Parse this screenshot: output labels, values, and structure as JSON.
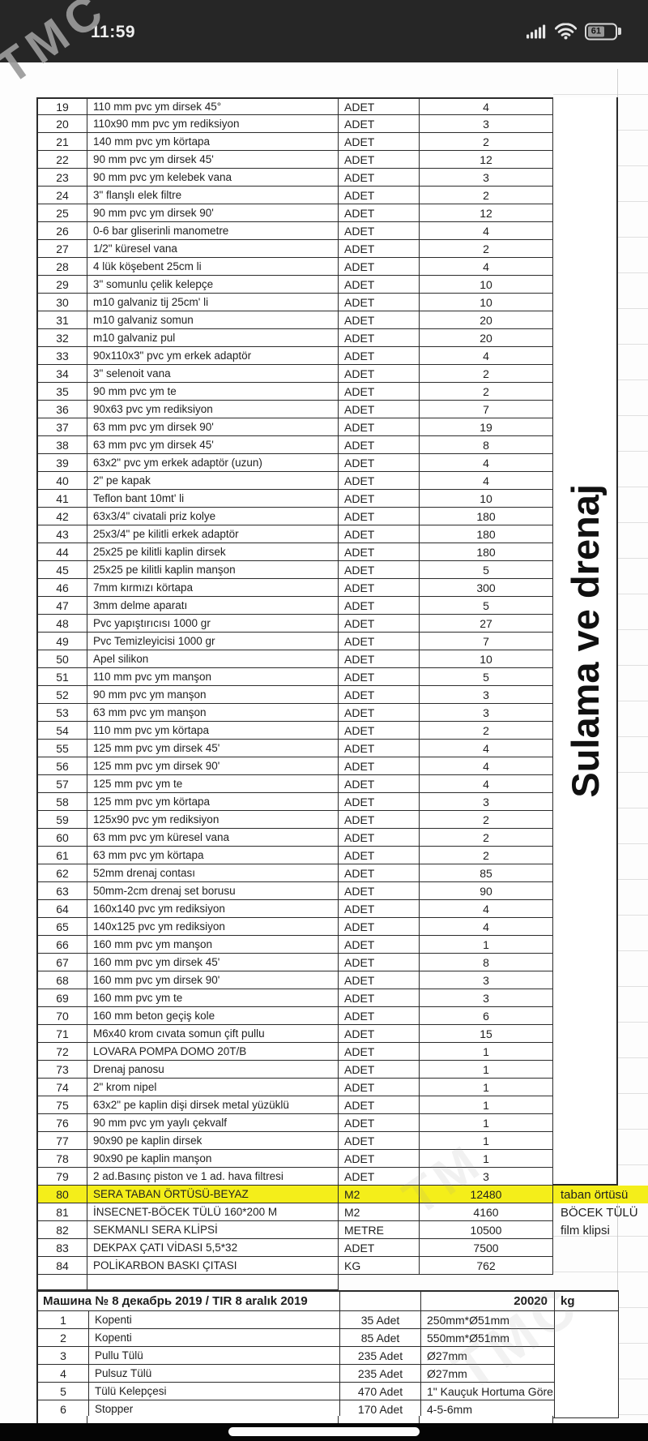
{
  "status_bar": {
    "time": "11:59",
    "battery_percent": "61",
    "icons": [
      "cellular-signal-icon",
      "wifi-icon",
      "battery-icon"
    ]
  },
  "watermarks": {
    "top": "TMC",
    "mid1": "TM",
    "mid2": "TMC"
  },
  "side_label": "Sulama ve drenaj",
  "colors": {
    "highlight_yellow": "#f4ee1a",
    "status_bar_bg": "#262626",
    "table_border": "#2b2b2b",
    "gridline_gray": "#c9c9c9"
  },
  "main_table": {
    "rows": [
      {
        "no": "19",
        "desc": "110 mm pvc ym dirsek 45°",
        "unit": "ADET",
        "qty": "4",
        "note": "",
        "highlight": false
      },
      {
        "no": "20",
        "desc": "110x90 mm pvc ym rediksiyon",
        "unit": "ADET",
        "qty": "3",
        "note": "",
        "highlight": false
      },
      {
        "no": "21",
        "desc": "140 mm pvc ym körtapa",
        "unit": "ADET",
        "qty": "2",
        "note": "",
        "highlight": false
      },
      {
        "no": "22",
        "desc": "90 mm pvc ym dirsek 45'",
        "unit": "ADET",
        "qty": "12",
        "note": "",
        "highlight": false
      },
      {
        "no": "23",
        "desc": "90 mm pvc ym kelebek vana",
        "unit": "ADET",
        "qty": "3",
        "note": "",
        "highlight": false
      },
      {
        "no": "24",
        "desc": "3\" flanşlı elek filtre",
        "unit": "ADET",
        "qty": "2",
        "note": "",
        "highlight": false
      },
      {
        "no": "25",
        "desc": "90 mm pvc ym dirsek 90'",
        "unit": "ADET",
        "qty": "12",
        "note": "",
        "highlight": false
      },
      {
        "no": "26",
        "desc": "0-6 bar gliserinli manometre",
        "unit": "ADET",
        "qty": "4",
        "note": "",
        "highlight": false
      },
      {
        "no": "27",
        "desc": "1/2\" küresel vana",
        "unit": "ADET",
        "qty": "2",
        "note": "",
        "highlight": false
      },
      {
        "no": "28",
        "desc": "4 lük  köşebent 25cm li",
        "unit": "ADET",
        "qty": "4",
        "note": "",
        "highlight": false
      },
      {
        "no": "29",
        "desc": "3\" somunlu çelik kelepçe",
        "unit": "ADET",
        "qty": "10",
        "note": "",
        "highlight": false
      },
      {
        "no": "30",
        "desc": "m10 galvaniz tij 25cm' li",
        "unit": "ADET",
        "qty": "10",
        "note": "",
        "highlight": false
      },
      {
        "no": "31",
        "desc": "m10 galvaniz somun",
        "unit": "ADET",
        "qty": "20",
        "note": "",
        "highlight": false
      },
      {
        "no": "32",
        "desc": "m10 galvaniz pul",
        "unit": "ADET",
        "qty": "20",
        "note": "",
        "highlight": false
      },
      {
        "no": "33",
        "desc": "90x110x3\" pvc ym erkek adaptör",
        "unit": "ADET",
        "qty": "4",
        "note": "",
        "highlight": false
      },
      {
        "no": "34",
        "desc": "3\" selenoit vana",
        "unit": "ADET",
        "qty": "2",
        "note": "",
        "highlight": false
      },
      {
        "no": "35",
        "desc": "90 mm pvc ym te",
        "unit": "ADET",
        "qty": "2",
        "note": "",
        "highlight": false
      },
      {
        "no": "36",
        "desc": "90x63 pvc ym rediksiyon",
        "unit": "ADET",
        "qty": "7",
        "note": "",
        "highlight": false
      },
      {
        "no": "37",
        "desc": "63 mm pvc ym dirsek 90'",
        "unit": "ADET",
        "qty": "19",
        "note": "",
        "highlight": false
      },
      {
        "no": "38",
        "desc": "63 mm pvc ym dirsek 45'",
        "unit": "ADET",
        "qty": "8",
        "note": "",
        "highlight": false
      },
      {
        "no": "39",
        "desc": "63x2\" pvc ym erkek adaptör (uzun)",
        "unit": "ADET",
        "qty": "4",
        "note": "",
        "highlight": false
      },
      {
        "no": "40",
        "desc": "2\" pe kapak",
        "unit": "ADET",
        "qty": "4",
        "note": "",
        "highlight": false
      },
      {
        "no": "41",
        "desc": "Teflon bant 10mt' li",
        "unit": "ADET",
        "qty": "10",
        "note": "",
        "highlight": false
      },
      {
        "no": "42",
        "desc": "63x3/4\" civatali priz kolye",
        "unit": "ADET",
        "qty": "180",
        "note": "",
        "highlight": false
      },
      {
        "no": "43",
        "desc": "25x3/4\" pe kilitli erkek adaptör",
        "unit": "ADET",
        "qty": "180",
        "note": "",
        "highlight": false
      },
      {
        "no": "44",
        "desc": "25x25 pe kilitli kaplin dirsek",
        "unit": "ADET",
        "qty": "180",
        "note": "",
        "highlight": false
      },
      {
        "no": "45",
        "desc": "25x25 pe kilitli kaplin manşon",
        "unit": "ADET",
        "qty": "5",
        "note": "",
        "highlight": false
      },
      {
        "no": "46",
        "desc": "7mm kırmızı körtapa",
        "unit": "ADET",
        "qty": "300",
        "note": "",
        "highlight": false
      },
      {
        "no": "47",
        "desc": "3mm delme aparatı",
        "unit": "ADET",
        "qty": "5",
        "note": "",
        "highlight": false
      },
      {
        "no": "48",
        "desc": "Pvc yapıştırıcısı 1000 gr",
        "unit": "ADET",
        "qty": "27",
        "note": "",
        "highlight": false
      },
      {
        "no": "49",
        "desc": "Pvc Temizleyicisi 1000 gr",
        "unit": "ADET",
        "qty": "7",
        "note": "",
        "highlight": false
      },
      {
        "no": "50",
        "desc": "Apel silikon",
        "unit": "ADET",
        "qty": "10",
        "note": "",
        "highlight": false
      },
      {
        "no": "51",
        "desc": "110 mm pvc ym manşon",
        "unit": "ADET",
        "qty": "5",
        "note": "",
        "highlight": false
      },
      {
        "no": "52",
        "desc": "90 mm pvc ym manşon",
        "unit": "ADET",
        "qty": "3",
        "note": "",
        "highlight": false
      },
      {
        "no": "53",
        "desc": "63 mm pvc ym manşon",
        "unit": "ADET",
        "qty": "3",
        "note": "",
        "highlight": false
      },
      {
        "no": "54",
        "desc": "110 mm pvc ym körtapa",
        "unit": "ADET",
        "qty": "2",
        "note": "",
        "highlight": false
      },
      {
        "no": "55",
        "desc": "125 mm pvc ym dirsek 45'",
        "unit": "ADET",
        "qty": "4",
        "note": "",
        "highlight": false
      },
      {
        "no": "56",
        "desc": "125 mm pvc ym dirsek 90'",
        "unit": "ADET",
        "qty": "4",
        "note": "",
        "highlight": false
      },
      {
        "no": "57",
        "desc": "125 mm pvc ym te",
        "unit": "ADET",
        "qty": "4",
        "note": "",
        "highlight": false
      },
      {
        "no": "58",
        "desc": "125 mm pvc ym körtapa",
        "unit": "ADET",
        "qty": "3",
        "note": "",
        "highlight": false
      },
      {
        "no": "59",
        "desc": "125x90 pvc ym rediksiyon",
        "unit": "ADET",
        "qty": "2",
        "note": "",
        "highlight": false
      },
      {
        "no": "60",
        "desc": "63 mm pvc ym küresel vana",
        "unit": "ADET",
        "qty": "2",
        "note": "",
        "highlight": false
      },
      {
        "no": "61",
        "desc": "63 mm pvc ym körtapa",
        "unit": "ADET",
        "qty": "2",
        "note": "",
        "highlight": false
      },
      {
        "no": "62",
        "desc": "52mm drenaj contası",
        "unit": "ADET",
        "qty": "85",
        "note": "",
        "highlight": false
      },
      {
        "no": "63",
        "desc": "50mm-2cm drenaj set borusu",
        "unit": "ADET",
        "qty": "90",
        "note": "",
        "highlight": false
      },
      {
        "no": "64",
        "desc": "160x140 pvc ym rediksiyon",
        "unit": "ADET",
        "qty": "4",
        "note": "",
        "highlight": false
      },
      {
        "no": "65",
        "desc": "140x125 pvc ym rediksiyon",
        "unit": "ADET",
        "qty": "4",
        "note": "",
        "highlight": false
      },
      {
        "no": "66",
        "desc": "160 mm pvc ym manşon",
        "unit": "ADET",
        "qty": "1",
        "note": "",
        "highlight": false
      },
      {
        "no": "67",
        "desc": "160 mm pvc ym dirsek 45'",
        "unit": "ADET",
        "qty": "8",
        "note": "",
        "highlight": false
      },
      {
        "no": "68",
        "desc": "160 mm pvc ym dirsek 90'",
        "unit": "ADET",
        "qty": "3",
        "note": "",
        "highlight": false
      },
      {
        "no": "69",
        "desc": "160 mm pvc ym te",
        "unit": "ADET",
        "qty": "3",
        "note": "",
        "highlight": false
      },
      {
        "no": "70",
        "desc": "160 mm beton geçiş kole",
        "unit": "ADET",
        "qty": "6",
        "note": "",
        "highlight": false
      },
      {
        "no": "71",
        "desc": "M6x40 krom cıvata somun çift pullu",
        "unit": "ADET",
        "qty": "15",
        "note": "",
        "highlight": false
      },
      {
        "no": "72",
        "desc": "LOVARA POMPA DOMO 20T/B",
        "unit": "ADET",
        "qty": "1",
        "note": "",
        "highlight": false
      },
      {
        "no": "73",
        "desc": "Drenaj panosu",
        "unit": "ADET",
        "qty": "1",
        "note": "",
        "highlight": false
      },
      {
        "no": "74",
        "desc": "2\" krom nipel",
        "unit": "ADET",
        "qty": "1",
        "note": "",
        "highlight": false
      },
      {
        "no": "75",
        "desc": "63x2\" pe kaplin dişi dirsek metal yüzüklü",
        "unit": "ADET",
        "qty": "1",
        "note": "",
        "highlight": false
      },
      {
        "no": "76",
        "desc": "90 mm pvc ym yaylı çekvalf",
        "unit": "ADET",
        "qty": "1",
        "note": "",
        "highlight": false
      },
      {
        "no": "77",
        "desc": "90x90 pe kaplin dirsek",
        "unit": "ADET",
        "qty": "1",
        "note": "",
        "highlight": false
      },
      {
        "no": "78",
        "desc": "90x90 pe kaplin manşon",
        "unit": "ADET",
        "qty": "1",
        "note": "",
        "highlight": false
      },
      {
        "no": "79",
        "desc": "2 ad.Basınç piston ve 1 ad. hava filtresi",
        "unit": "ADET",
        "qty": "3",
        "note": "",
        "highlight": false
      },
      {
        "no": "80",
        "desc": "SERA TABAN ÖRTÜSÜ-BEYAZ",
        "unit": "M2",
        "qty": "12480",
        "note": "taban örtüsü",
        "highlight": true
      },
      {
        "no": "81",
        "desc": "İNSECNET-BÖCEK TÜLÜ 160*200 M",
        "unit": "M2",
        "qty": "4160",
        "note": "BÖCEK TÜLÜ",
        "highlight": false
      },
      {
        "no": "82",
        "desc": "SEKMANLI SERA KLİPSİ",
        "unit": "METRE",
        "qty": "10500",
        "note": "film klipsi",
        "highlight": false
      },
      {
        "no": "83",
        "desc": "DEKPAX ÇATI VİDASI 5,5*32",
        "unit": "ADET",
        "qty": "7500",
        "note": "",
        "highlight": false
      },
      {
        "no": "84",
        "desc": "POLİKARBON BASKI ÇITASI",
        "unit": "KG",
        "qty": "762",
        "note": "",
        "highlight": false
      }
    ]
  },
  "shipment_table": {
    "title": "Машина № 8 декабрь 2019 / TIR 8 aralık 2019",
    "total_weight": "20020",
    "weight_unit": "kg",
    "rows": [
      {
        "no": "1",
        "desc": "Kopenti",
        "qty": "35 Adet",
        "spec": "250mm*Ø51mm"
      },
      {
        "no": "2",
        "desc": "Kopenti",
        "qty": "85 Adet",
        "spec": "550mm*Ø51mm"
      },
      {
        "no": "3",
        "desc": "Pullu Tülü",
        "qty": "235 Adet",
        "spec": "Ø27mm"
      },
      {
        "no": "4",
        "desc": "Pulsuz Tülü",
        "qty": "235 Adet",
        "spec": "Ø27mm"
      },
      {
        "no": "5",
        "desc": "Tülü Kelepçesi",
        "qty": "470 Adet",
        "spec": "1\" Kauçuk Hortuma Göre"
      },
      {
        "no": "6",
        "desc": "Stopper",
        "qty": "170 Adet",
        "spec": "4-5-6mm"
      }
    ]
  }
}
